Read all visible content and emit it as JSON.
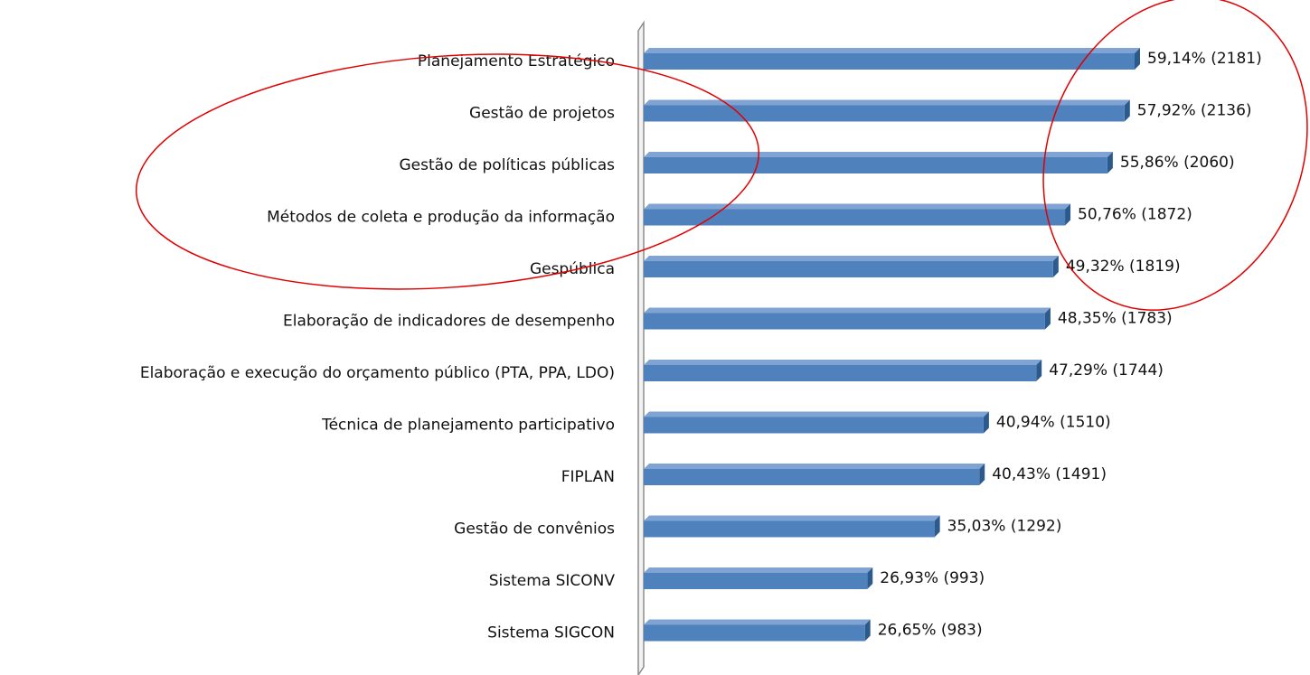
{
  "chart_data": {
    "type": "bar",
    "orientation": "horizontal",
    "categories": [
      "Planejamento Estratégico",
      "Gestão de projetos",
      "Gestão de políticas públicas",
      "Métodos de coleta e produção da informação",
      "Gespública",
      "Elaboração de indicadores de desempenho",
      "Elaboração e execução do orçamento público (PTA, PPA, LDO)",
      "Técnica de planejamento participativo",
      "FIPLAN",
      "Gestão de convênios",
      "Sistema SICONV",
      "Sistema SIGCON"
    ],
    "values": [
      59.14,
      57.92,
      55.86,
      50.76,
      49.32,
      48.35,
      47.29,
      40.94,
      40.43,
      35.03,
      26.93,
      26.65
    ],
    "value_labels": [
      "59,14% (2181)",
      "57,92% (2136)",
      "55,86% (2060)",
      "50,76% (1872)",
      "49,32% (1819)",
      "48,35% (1783)",
      "47,29% (1744)",
      "40,94% (1510)",
      "40,43% (1491)",
      "35,03% (1292)",
      "26,93% (993)",
      "26,65% (983)"
    ],
    "color": "#4f81bd"
  }
}
